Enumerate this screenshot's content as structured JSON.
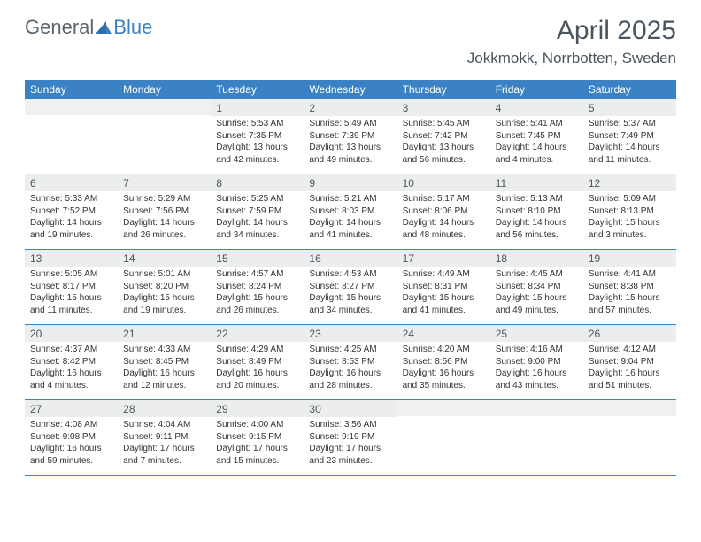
{
  "logo": {
    "general": "General",
    "blue": "Blue"
  },
  "title": "April 2025",
  "location": "Jokkmokk, Norrbotten, Sweden",
  "colors": {
    "header_bg": "#3a82c4",
    "header_text": "#ffffff",
    "daynum_bg": "#eceded",
    "daynum_text": "#4a5560",
    "body_text": "#333333",
    "rule": "#3a82c4",
    "logo_gray": "#5a6670",
    "logo_blue": "#3a82c4"
  },
  "day_headers": [
    "Sunday",
    "Monday",
    "Tuesday",
    "Wednesday",
    "Thursday",
    "Friday",
    "Saturday"
  ],
  "weeks": [
    [
      {
        "daynum": "",
        "sunrise": "",
        "sunset": "",
        "daylight": ""
      },
      {
        "daynum": "",
        "sunrise": "",
        "sunset": "",
        "daylight": ""
      },
      {
        "daynum": "1",
        "sunrise": "Sunrise: 5:53 AM",
        "sunset": "Sunset: 7:35 PM",
        "daylight": "Daylight: 13 hours and 42 minutes."
      },
      {
        "daynum": "2",
        "sunrise": "Sunrise: 5:49 AM",
        "sunset": "Sunset: 7:39 PM",
        "daylight": "Daylight: 13 hours and 49 minutes."
      },
      {
        "daynum": "3",
        "sunrise": "Sunrise: 5:45 AM",
        "sunset": "Sunset: 7:42 PM",
        "daylight": "Daylight: 13 hours and 56 minutes."
      },
      {
        "daynum": "4",
        "sunrise": "Sunrise: 5:41 AM",
        "sunset": "Sunset: 7:45 PM",
        "daylight": "Daylight: 14 hours and 4 minutes."
      },
      {
        "daynum": "5",
        "sunrise": "Sunrise: 5:37 AM",
        "sunset": "Sunset: 7:49 PM",
        "daylight": "Daylight: 14 hours and 11 minutes."
      }
    ],
    [
      {
        "daynum": "6",
        "sunrise": "Sunrise: 5:33 AM",
        "sunset": "Sunset: 7:52 PM",
        "daylight": "Daylight: 14 hours and 19 minutes."
      },
      {
        "daynum": "7",
        "sunrise": "Sunrise: 5:29 AM",
        "sunset": "Sunset: 7:56 PM",
        "daylight": "Daylight: 14 hours and 26 minutes."
      },
      {
        "daynum": "8",
        "sunrise": "Sunrise: 5:25 AM",
        "sunset": "Sunset: 7:59 PM",
        "daylight": "Daylight: 14 hours and 34 minutes."
      },
      {
        "daynum": "9",
        "sunrise": "Sunrise: 5:21 AM",
        "sunset": "Sunset: 8:03 PM",
        "daylight": "Daylight: 14 hours and 41 minutes."
      },
      {
        "daynum": "10",
        "sunrise": "Sunrise: 5:17 AM",
        "sunset": "Sunset: 8:06 PM",
        "daylight": "Daylight: 14 hours and 48 minutes."
      },
      {
        "daynum": "11",
        "sunrise": "Sunrise: 5:13 AM",
        "sunset": "Sunset: 8:10 PM",
        "daylight": "Daylight: 14 hours and 56 minutes."
      },
      {
        "daynum": "12",
        "sunrise": "Sunrise: 5:09 AM",
        "sunset": "Sunset: 8:13 PM",
        "daylight": "Daylight: 15 hours and 3 minutes."
      }
    ],
    [
      {
        "daynum": "13",
        "sunrise": "Sunrise: 5:05 AM",
        "sunset": "Sunset: 8:17 PM",
        "daylight": "Daylight: 15 hours and 11 minutes."
      },
      {
        "daynum": "14",
        "sunrise": "Sunrise: 5:01 AM",
        "sunset": "Sunset: 8:20 PM",
        "daylight": "Daylight: 15 hours and 19 minutes."
      },
      {
        "daynum": "15",
        "sunrise": "Sunrise: 4:57 AM",
        "sunset": "Sunset: 8:24 PM",
        "daylight": "Daylight: 15 hours and 26 minutes."
      },
      {
        "daynum": "16",
        "sunrise": "Sunrise: 4:53 AM",
        "sunset": "Sunset: 8:27 PM",
        "daylight": "Daylight: 15 hours and 34 minutes."
      },
      {
        "daynum": "17",
        "sunrise": "Sunrise: 4:49 AM",
        "sunset": "Sunset: 8:31 PM",
        "daylight": "Daylight: 15 hours and 41 minutes."
      },
      {
        "daynum": "18",
        "sunrise": "Sunrise: 4:45 AM",
        "sunset": "Sunset: 8:34 PM",
        "daylight": "Daylight: 15 hours and 49 minutes."
      },
      {
        "daynum": "19",
        "sunrise": "Sunrise: 4:41 AM",
        "sunset": "Sunset: 8:38 PM",
        "daylight": "Daylight: 15 hours and 57 minutes."
      }
    ],
    [
      {
        "daynum": "20",
        "sunrise": "Sunrise: 4:37 AM",
        "sunset": "Sunset: 8:42 PM",
        "daylight": "Daylight: 16 hours and 4 minutes."
      },
      {
        "daynum": "21",
        "sunrise": "Sunrise: 4:33 AM",
        "sunset": "Sunset: 8:45 PM",
        "daylight": "Daylight: 16 hours and 12 minutes."
      },
      {
        "daynum": "22",
        "sunrise": "Sunrise: 4:29 AM",
        "sunset": "Sunset: 8:49 PM",
        "daylight": "Daylight: 16 hours and 20 minutes."
      },
      {
        "daynum": "23",
        "sunrise": "Sunrise: 4:25 AM",
        "sunset": "Sunset: 8:53 PM",
        "daylight": "Daylight: 16 hours and 28 minutes."
      },
      {
        "daynum": "24",
        "sunrise": "Sunrise: 4:20 AM",
        "sunset": "Sunset: 8:56 PM",
        "daylight": "Daylight: 16 hours and 35 minutes."
      },
      {
        "daynum": "25",
        "sunrise": "Sunrise: 4:16 AM",
        "sunset": "Sunset: 9:00 PM",
        "daylight": "Daylight: 16 hours and 43 minutes."
      },
      {
        "daynum": "26",
        "sunrise": "Sunrise: 4:12 AM",
        "sunset": "Sunset: 9:04 PM",
        "daylight": "Daylight: 16 hours and 51 minutes."
      }
    ],
    [
      {
        "daynum": "27",
        "sunrise": "Sunrise: 4:08 AM",
        "sunset": "Sunset: 9:08 PM",
        "daylight": "Daylight: 16 hours and 59 minutes."
      },
      {
        "daynum": "28",
        "sunrise": "Sunrise: 4:04 AM",
        "sunset": "Sunset: 9:11 PM",
        "daylight": "Daylight: 17 hours and 7 minutes."
      },
      {
        "daynum": "29",
        "sunrise": "Sunrise: 4:00 AM",
        "sunset": "Sunset: 9:15 PM",
        "daylight": "Daylight: 17 hours and 15 minutes."
      },
      {
        "daynum": "30",
        "sunrise": "Sunrise: 3:56 AM",
        "sunset": "Sunset: 9:19 PM",
        "daylight": "Daylight: 17 hours and 23 minutes."
      },
      {
        "daynum": "",
        "sunrise": "",
        "sunset": "",
        "daylight": ""
      },
      {
        "daynum": "",
        "sunrise": "",
        "sunset": "",
        "daylight": ""
      },
      {
        "daynum": "",
        "sunrise": "",
        "sunset": "",
        "daylight": ""
      }
    ]
  ]
}
